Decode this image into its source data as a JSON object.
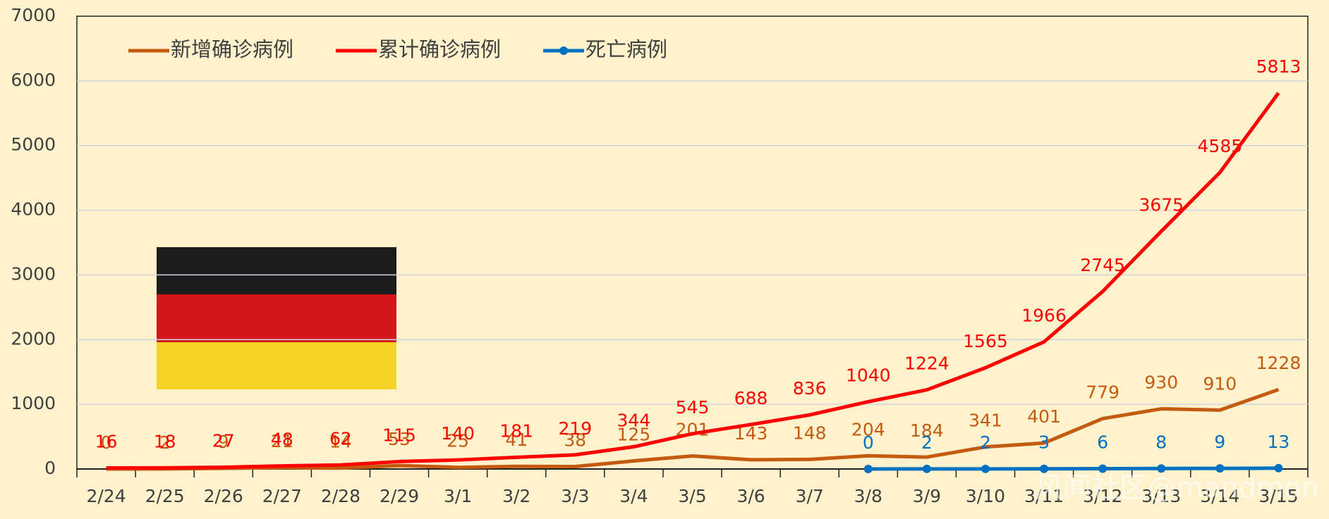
{
  "chart_data": {
    "type": "line",
    "categories": [
      "2/24",
      "2/25",
      "2/26",
      "2/27",
      "2/28",
      "2/29",
      "3/1",
      "3/2",
      "3/3",
      "3/4",
      "3/5",
      "3/6",
      "3/7",
      "3/8",
      "3/9",
      "3/10",
      "3/11",
      "3/12",
      "3/13",
      "3/14",
      "3/15"
    ],
    "series": [
      {
        "name": "新增确诊病例",
        "color": "#c55a11",
        "values": [
          0,
          2,
          9,
          21,
          14,
          53,
          25,
          41,
          38,
          125,
          201,
          143,
          148,
          204,
          184,
          341,
          401,
          779,
          930,
          910,
          1228
        ]
      },
      {
        "name": "累计确诊病例",
        "color": "#ff0000",
        "values": [
          16,
          18,
          27,
          48,
          62,
          115,
          140,
          181,
          219,
          344,
          545,
          688,
          836,
          1040,
          1224,
          1565,
          1966,
          2745,
          3675,
          4585,
          5813
        ]
      },
      {
        "name": "死亡病例",
        "color": "#0070c0",
        "values": [
          null,
          null,
          null,
          null,
          null,
          null,
          null,
          null,
          null,
          null,
          null,
          null,
          null,
          0,
          2,
          2,
          3,
          6,
          8,
          9,
          13
        ]
      }
    ],
    "ylim": [
      0,
      7000
    ],
    "yticks": [
      0,
      1000,
      2000,
      3000,
      4000,
      5000,
      6000,
      7000
    ],
    "grid": true,
    "legend": "top-left",
    "watermark": "风闻社区@mandmon"
  }
}
